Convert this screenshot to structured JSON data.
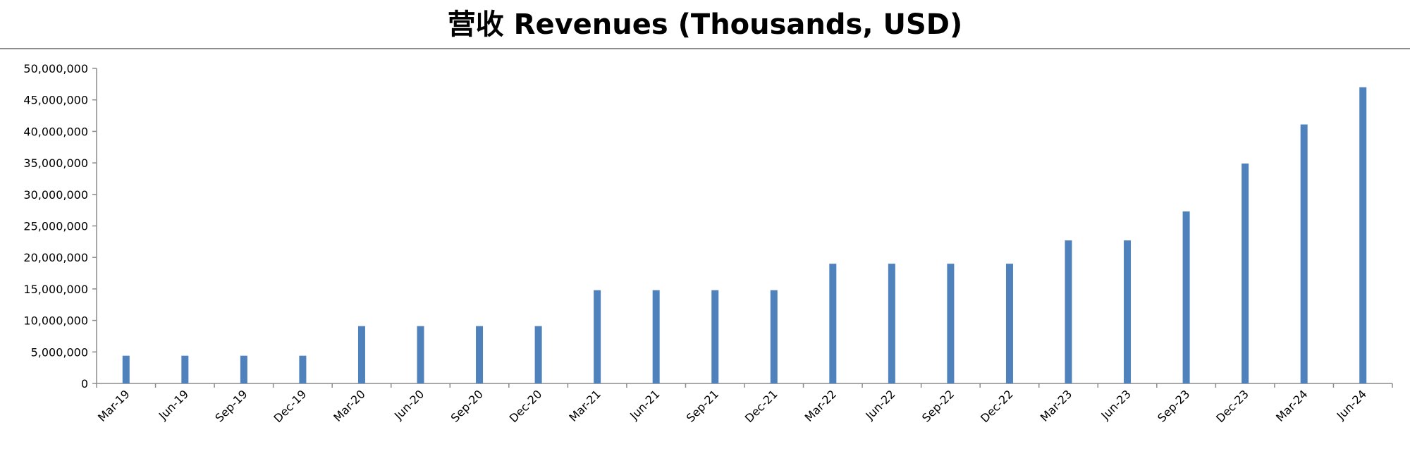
{
  "chart_data": {
    "type": "bar",
    "title": "营收 Revenues (Thousands, USD)",
    "xlabel": "",
    "ylabel": "",
    "ylim": [
      0,
      50000000
    ],
    "y_ticks": [
      "0",
      "5,000,000",
      "10,000,000",
      "15,000,000",
      "20,000,000",
      "25,000,000",
      "30,000,000",
      "35,000,000",
      "40,000,000",
      "45,000,000",
      "50,000,000"
    ],
    "y_tick_values": [
      0,
      5000000,
      10000000,
      15000000,
      20000000,
      25000000,
      30000000,
      35000000,
      40000000,
      45000000,
      50000000
    ],
    "categories": [
      "Mar-19",
      "Jun-19",
      "Sep-19",
      "Dec-19",
      "Mar-20",
      "Jun-20",
      "Sep-20",
      "Dec-20",
      "Mar-21",
      "Jun-21",
      "Sep-21",
      "Dec-21",
      "Mar-22",
      "Jun-22",
      "Sep-22",
      "Dec-22",
      "Mar-23",
      "Jun-23",
      "Sep-23",
      "Dec-23",
      "Mar-24",
      "Jun-24"
    ],
    "values": [
      4400000,
      4400000,
      4400000,
      4400000,
      9100000,
      9100000,
      9100000,
      9100000,
      14800000,
      14800000,
      14800000,
      14800000,
      19000000,
      19000000,
      19000000,
      19000000,
      22700000,
      22700000,
      27300000,
      34900000,
      41100000,
      47000000
    ],
    "colors": {
      "bar": "#4f81bd",
      "axis": "#8c8c8c"
    },
    "grid": false,
    "legend": "none"
  }
}
